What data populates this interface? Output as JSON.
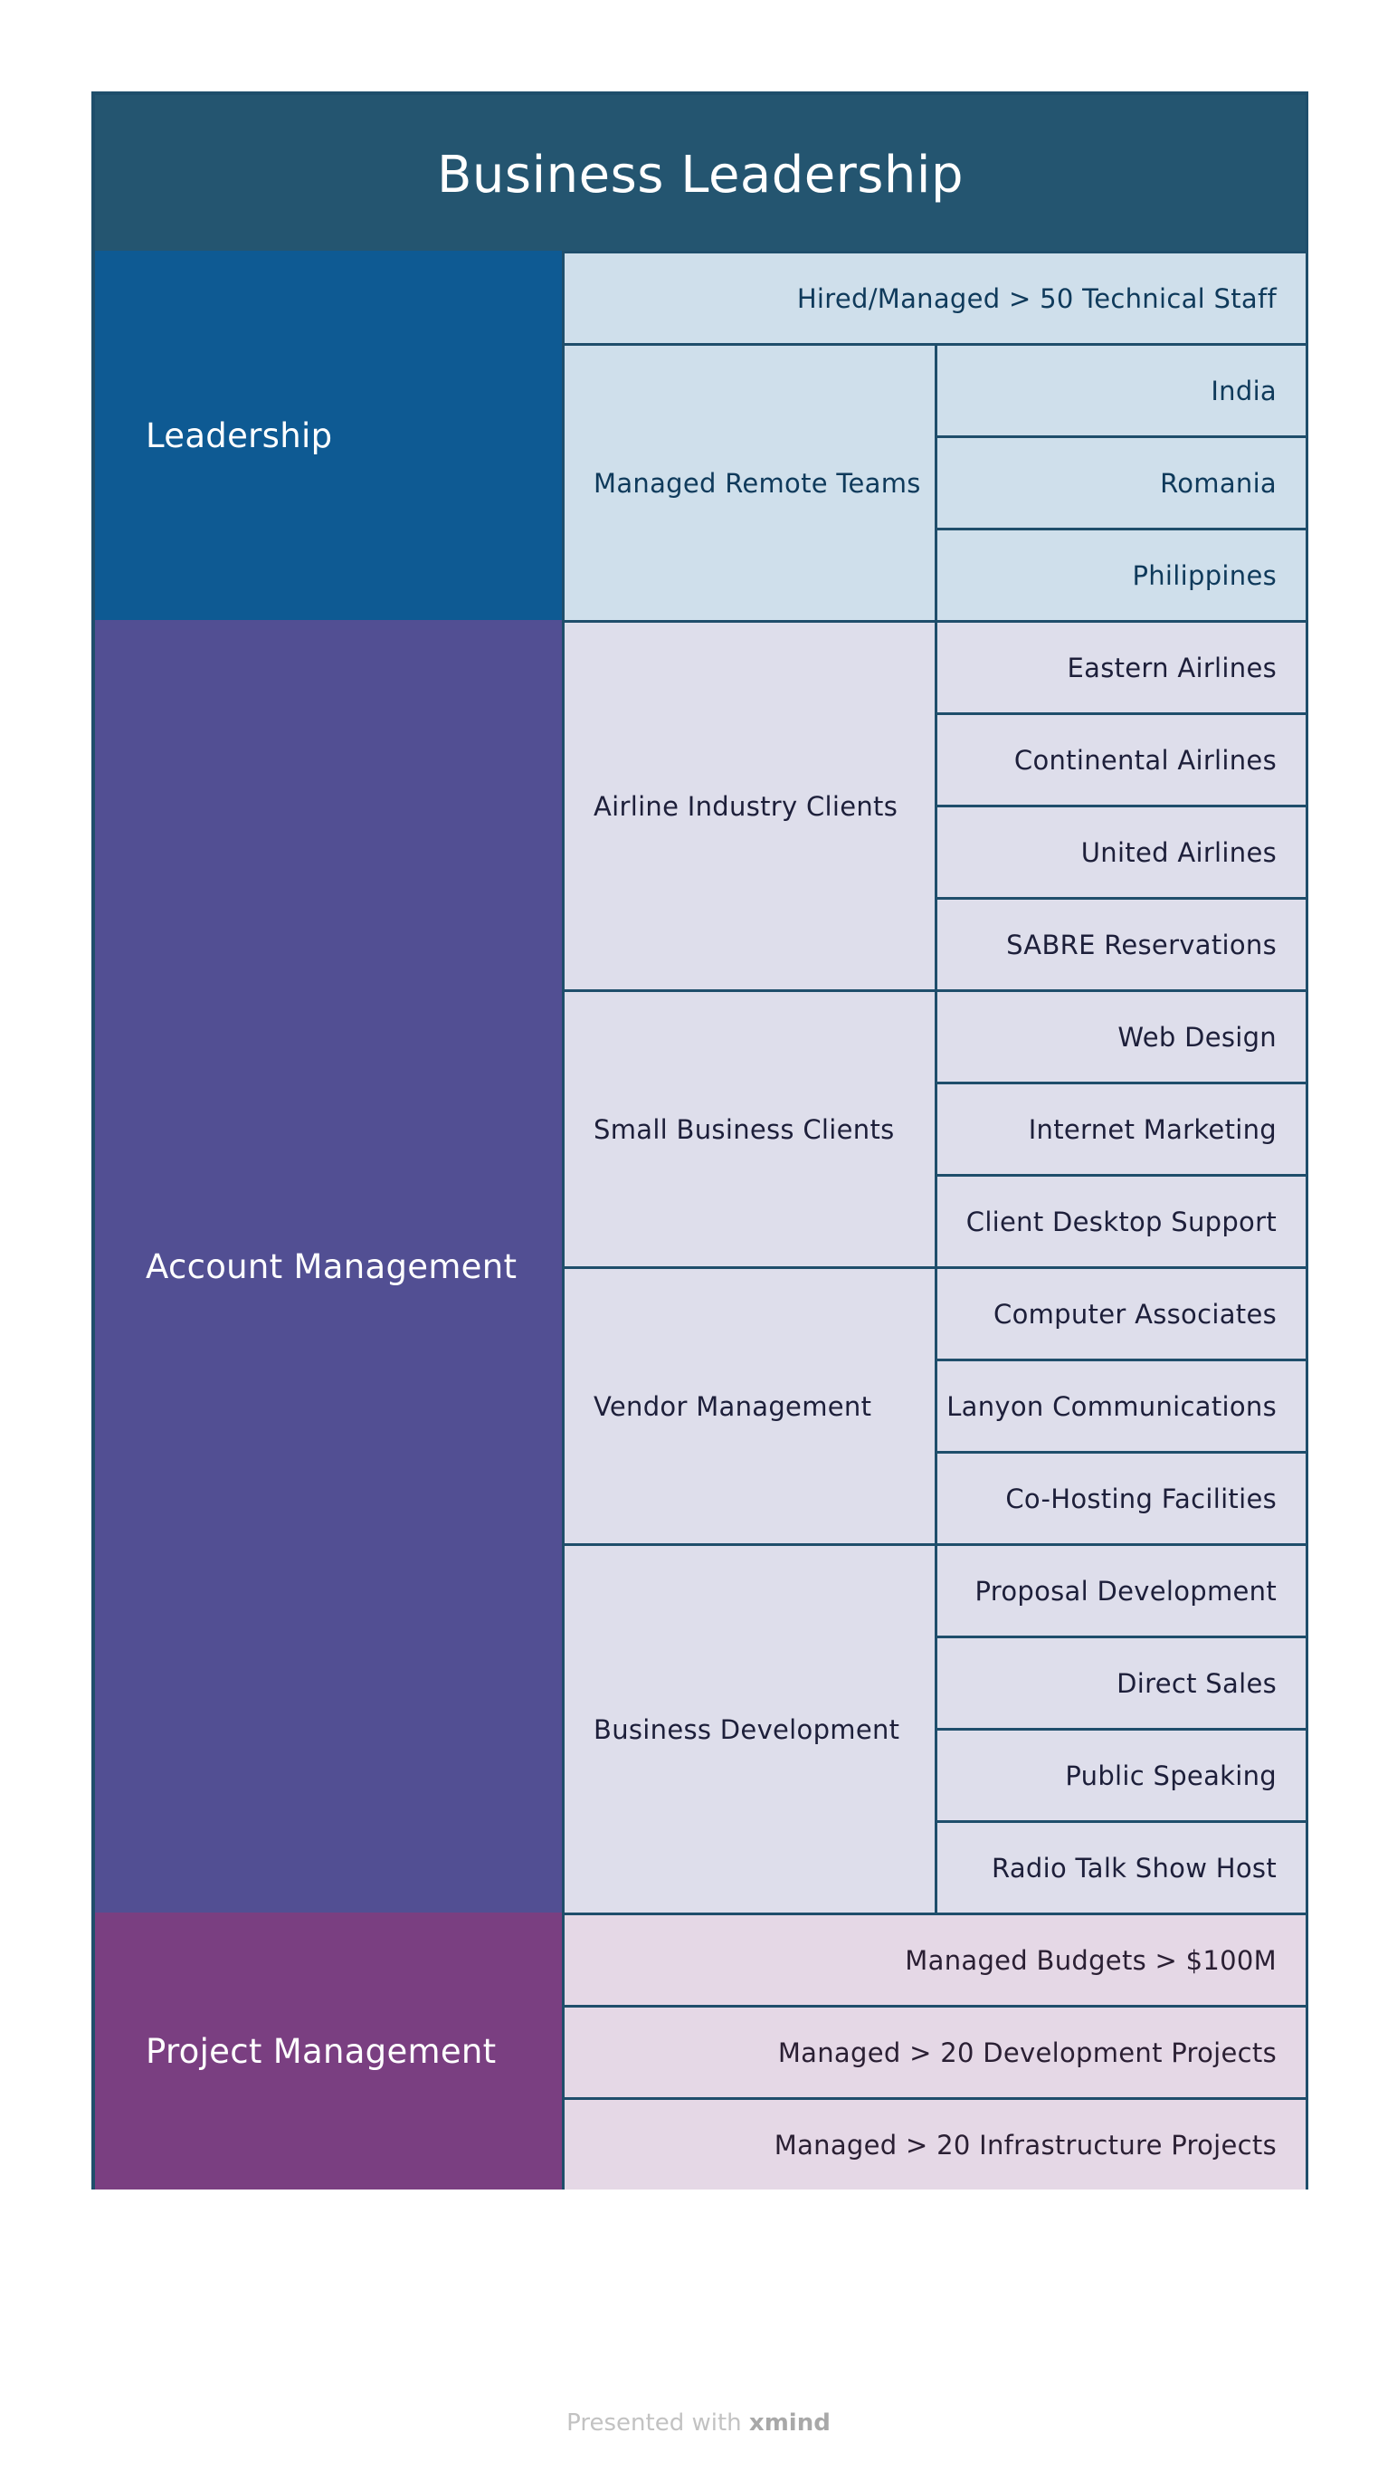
{
  "title": "Business Leadership",
  "sections": {
    "leadership": {
      "label": "Leadership",
      "top_item": "Hired/Managed  > 50 Technical Staff",
      "remote_teams": {
        "label": "Managed Remote Teams",
        "items": [
          "India",
          "Romania",
          "Philippines"
        ]
      }
    },
    "account": {
      "label": "Account Management",
      "airline": {
        "label": "Airline Industry Clients",
        "items": [
          "Eastern Airlines",
          "Continental Airlines",
          "United Airlines",
          "SABRE Reservations"
        ]
      },
      "small_business": {
        "label": "Small Business Clients",
        "items": [
          "Web Design",
          "Internet Marketing",
          "Client Desktop Support"
        ]
      },
      "vendor": {
        "label": "Vendor Management",
        "items": [
          "Computer Associates",
          "Lanyon Communications",
          "Co-Hosting Facilities"
        ]
      },
      "bizdev": {
        "label": "Business Development",
        "items": [
          "Proposal Development",
          "Direct Sales",
          "Public Speaking",
          "Radio Talk Show Host"
        ]
      }
    },
    "project": {
      "label": "Project Management",
      "items": [
        "Managed Budgets > $100M",
        "Managed >  20 Development Projects",
        "Managed > 20 Infrastructure Projects"
      ]
    }
  },
  "footer": {
    "prefix": "Presented with",
    "brand": "xmind"
  },
  "colors": {
    "title_bg": "#245570",
    "leadership": "#0e5a93",
    "account": "#524f93",
    "project": "#7a3f81",
    "border": "#1f4e6b"
  }
}
